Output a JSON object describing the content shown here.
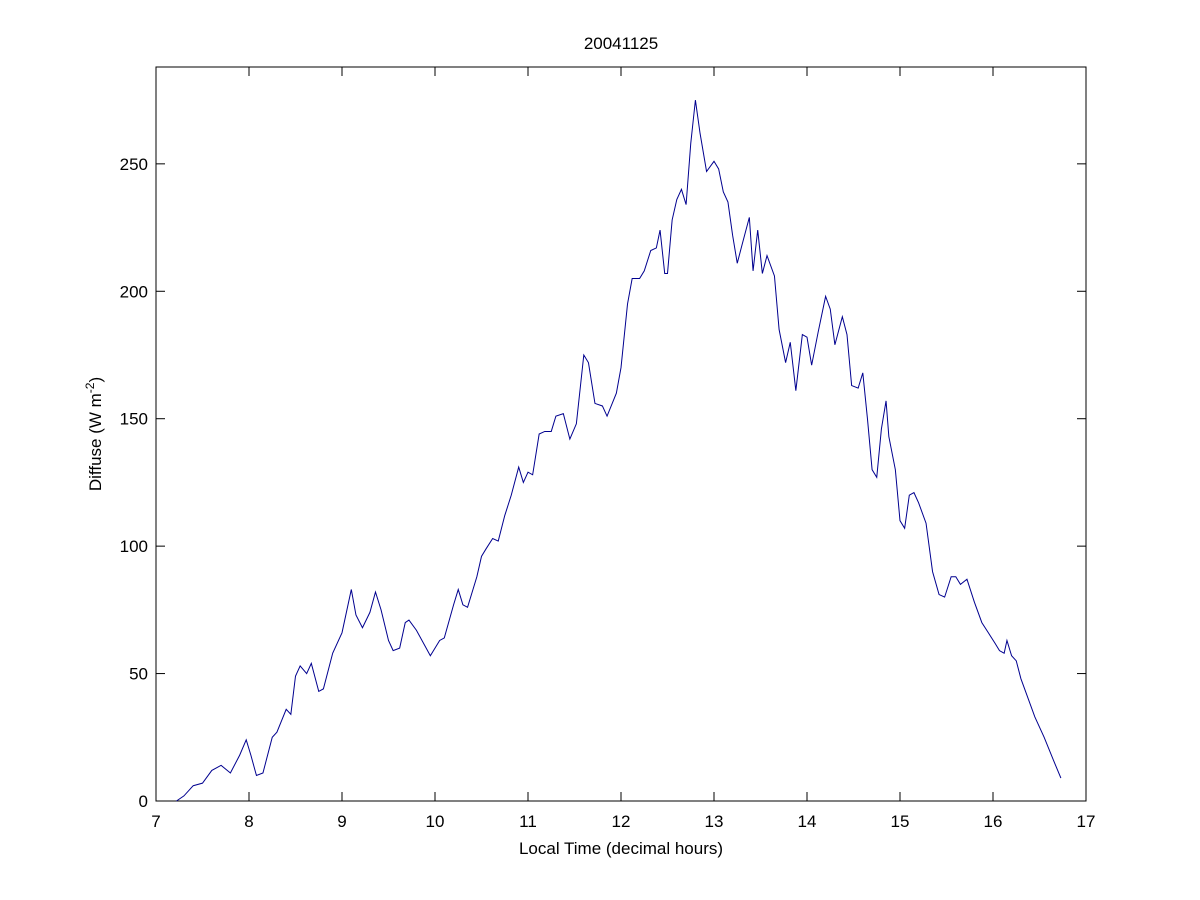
{
  "chart_data": {
    "type": "line",
    "title": "20041125",
    "x_label": "Local Time (decimal hours)",
    "y_label": [
      "Diffuse (W m",
      "-2",
      ")"
    ],
    "xlim": [
      7,
      17
    ],
    "xticks": [
      7,
      8,
      9,
      10,
      11,
      12,
      13,
      14,
      15,
      16,
      17
    ],
    "ylim": [
      0,
      288
    ],
    "yticks": [
      0,
      50,
      100,
      150,
      200,
      250
    ],
    "series": [
      {
        "color": "#00008f",
        "x": [
          7.22,
          7.3,
          7.4,
          7.5,
          7.6,
          7.7,
          7.8,
          7.9,
          7.97,
          8.02,
          8.08,
          8.15,
          8.25,
          8.3,
          8.4,
          8.45,
          8.5,
          8.55,
          8.62,
          8.67,
          8.75,
          8.8,
          8.9,
          9.0,
          9.1,
          9.15,
          9.22,
          9.3,
          9.36,
          9.42,
          9.5,
          9.55,
          9.62,
          9.68,
          9.72,
          9.8,
          9.95,
          10.0,
          10.05,
          10.1,
          10.2,
          10.25,
          10.3,
          10.35,
          10.45,
          10.5,
          10.55,
          10.62,
          10.68,
          10.75,
          10.82,
          10.9,
          10.95,
          11.0,
          11.05,
          11.12,
          11.18,
          11.25,
          11.3,
          11.38,
          11.45,
          11.52,
          11.6,
          11.65,
          11.72,
          11.8,
          11.85,
          11.95,
          12.0,
          12.07,
          12.12,
          12.2,
          12.25,
          12.32,
          12.38,
          12.42,
          12.47,
          12.5,
          12.55,
          12.6,
          12.65,
          12.7,
          12.75,
          12.8,
          12.85,
          12.92,
          13.0,
          13.05,
          13.1,
          13.15,
          13.2,
          13.25,
          13.3,
          13.38,
          13.42,
          13.47,
          13.52,
          13.57,
          13.65,
          13.7,
          13.77,
          13.82,
          13.88,
          13.95,
          14.0,
          14.05,
          14.12,
          14.2,
          14.25,
          14.3,
          14.38,
          14.43,
          14.48,
          14.55,
          14.6,
          14.65,
          14.7,
          14.75,
          14.8,
          14.85,
          14.88,
          14.95,
          15.0,
          15.05,
          15.1,
          15.15,
          15.2,
          15.28,
          15.35,
          15.42,
          15.48,
          15.55,
          15.6,
          15.65,
          15.72,
          15.8,
          15.88,
          15.95,
          16.02,
          16.07,
          16.12,
          16.15,
          16.2,
          16.25,
          16.3,
          16.35,
          16.45,
          16.55,
          16.65,
          16.73
        ],
        "values": [
          0,
          2,
          6,
          7,
          12,
          14,
          11,
          18,
          24,
          18,
          10,
          11,
          25,
          27,
          36,
          34,
          49,
          53,
          50,
          54,
          43,
          44,
          58,
          66,
          83,
          73,
          68,
          74,
          82,
          75,
          63,
          59,
          60,
          70,
          71,
          67,
          57,
          60,
          63,
          64,
          77,
          83,
          77,
          76,
          88,
          96,
          99,
          103,
          102,
          112,
          120,
          131,
          125,
          129,
          128,
          144,
          145,
          145,
          151,
          152,
          142,
          148,
          175,
          172,
          156,
          155,
          151,
          160,
          170,
          195,
          205,
          205,
          208,
          216,
          217,
          224,
          207,
          207,
          228,
          236,
          240,
          234,
          258,
          275,
          262,
          247,
          251,
          248,
          239,
          235,
          222,
          211,
          218,
          229,
          208,
          224,
          207,
          214,
          206,
          185,
          172,
          180,
          161,
          183,
          182,
          171,
          184,
          198,
          193,
          179,
          190,
          183,
          163,
          162,
          168,
          150,
          130,
          127,
          146,
          157,
          143,
          130,
          110,
          107,
          120,
          121,
          117,
          109,
          90,
          81,
          80,
          88,
          88,
          85,
          87,
          78,
          70,
          66,
          62,
          59,
          58,
          63,
          57,
          55,
          48,
          43,
          33,
          25,
          16,
          9
        ]
      }
    ]
  }
}
